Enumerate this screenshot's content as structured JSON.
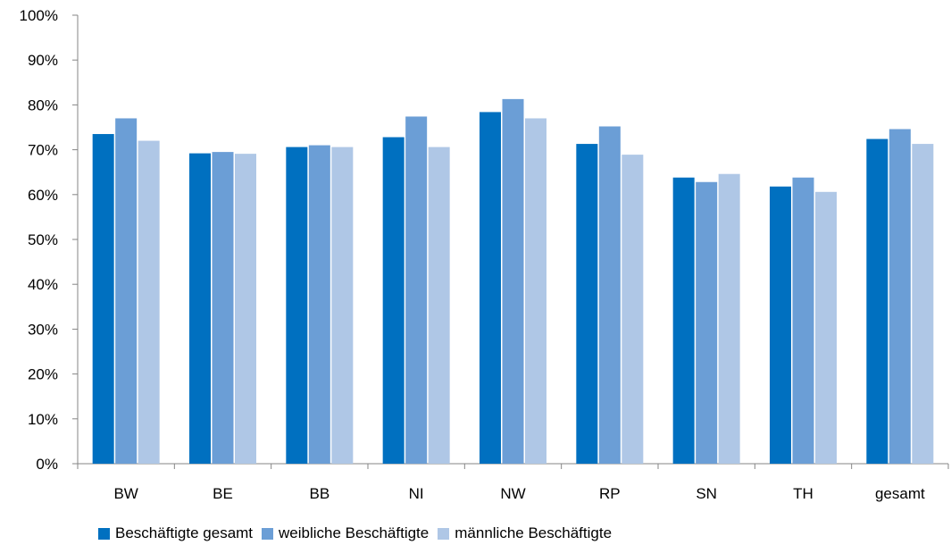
{
  "chart_data": {
    "type": "bar",
    "title": "",
    "xlabel": "",
    "ylabel": "",
    "categories": [
      "BW",
      "BE",
      "BB",
      "NI",
      "NW",
      "RP",
      "SN",
      "TH",
      "gesamt"
    ],
    "ylim": [
      0,
      100
    ],
    "yticks": [
      0,
      10,
      20,
      30,
      40,
      50,
      60,
      70,
      80,
      90,
      100
    ],
    "ytick_labels": [
      "0%",
      "10%",
      "20%",
      "30%",
      "40%",
      "50%",
      "60%",
      "70%",
      "80%",
      "90%",
      "100%"
    ],
    "grid": false,
    "legend_position": "bottom",
    "series": [
      {
        "name": "Beschäftigte gesamt",
        "color": "#0070C0",
        "values": [
          73.5,
          69.2,
          70.6,
          72.8,
          78.4,
          71.3,
          63.8,
          61.8,
          72.4
        ]
      },
      {
        "name": "weibliche Beschäftigte",
        "color": "#6B9ED6",
        "values": [
          77.0,
          69.5,
          71.0,
          77.4,
          81.3,
          75.2,
          62.8,
          63.8,
          74.6
        ]
      },
      {
        "name": "männliche Beschäftigte",
        "color": "#AFC7E6",
        "values": [
          72.0,
          69.1,
          70.6,
          70.6,
          77.0,
          68.9,
          64.6,
          60.6,
          71.3
        ]
      }
    ]
  }
}
